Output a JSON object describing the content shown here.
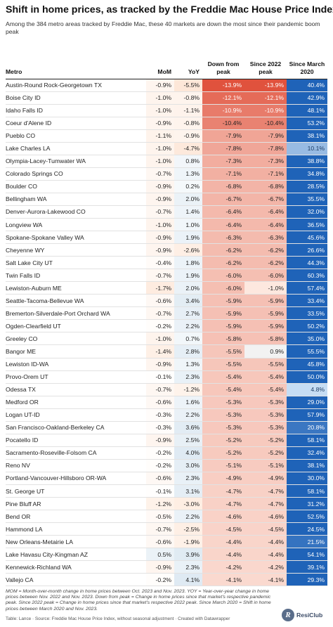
{
  "header": {
    "title": "Shift in home prices, as tracked by the Freddie Mac House Price Index",
    "subtitle": "Among the 384 metro areas tracked by Freddie Mac, these 40 markets are down the most since their pandemic boom peak"
  },
  "footer": {
    "notes": "MOM = Month-over-month change in home prices between Oct. 2023 and Nov. 2023. YOY = Year-over-year change in home prices between Nov. 2022 and Nov. 2023. Down from peak = Change in home prices since that market's respective pandemic peak. Since 2022 peak = Change in home prices since that market's respective 2022 peak. Since March 2020 = Shift in home prices between March 2020 and Nov. 2023.",
    "credit": "Table: Lance · Source: Freddie Mac House Price Index, without seasonal adjustment · Created with Datawrapper",
    "logo_mark": "R",
    "logo_text": "ResiClub"
  },
  "colors": {
    "since_2020_dark": "#1f63b8",
    "since_2020_light": "#cde2f6",
    "down_peak_dark": "#e0523d",
    "down_peak_light": "#fde8df",
    "yoy_positive_tint": "#dde9f2",
    "yoy_negative_tint": "#fde6d6"
  },
  "chart_data": {
    "type": "table",
    "columns": [
      "Metro",
      "MoM",
      "YoY",
      "Down from peak",
      "Since 2022 peak",
      "Since March 2020"
    ],
    "rows": [
      [
        "Austin-Round Rock-Georgetown TX",
        "-0.9%",
        "-5.5%",
        "-13.9%",
        "-13.9%",
        "40.4%"
      ],
      [
        "Boise City ID",
        "-1.0%",
        "-0.8%",
        "-12.1%",
        "-12.1%",
        "42.9%"
      ],
      [
        "Idaho Falls ID",
        "-1.0%",
        "-1.1%",
        "-10.9%",
        "-10.9%",
        "48.1%"
      ],
      [
        "Coeur d'Alene ID",
        "-0.9%",
        "-0.8%",
        "-10.4%",
        "-10.4%",
        "53.2%"
      ],
      [
        "Pueblo CO",
        "-1.1%",
        "-0.9%",
        "-7.9%",
        "-7.9%",
        "38.1%"
      ],
      [
        "Lake Charles LA",
        "-1.0%",
        "-4.7%",
        "-7.8%",
        "-7.8%",
        "10.1%"
      ],
      [
        "Olympia-Lacey-Tumwater WA",
        "-1.0%",
        "0.8%",
        "-7.3%",
        "-7.3%",
        "38.8%"
      ],
      [
        "Colorado Springs CO",
        "-0.7%",
        "1.3%",
        "-7.1%",
        "-7.1%",
        "34.8%"
      ],
      [
        "Boulder CO",
        "-0.9%",
        "0.2%",
        "-6.8%",
        "-6.8%",
        "28.5%"
      ],
      [
        "Bellingham WA",
        "-0.9%",
        "2.0%",
        "-6.7%",
        "-6.7%",
        "35.5%"
      ],
      [
        "Denver-Aurora-Lakewood CO",
        "-0.7%",
        "1.4%",
        "-6.4%",
        "-6.4%",
        "32.0%"
      ],
      [
        "Longview WA",
        "-1.0%",
        "1.0%",
        "-6.4%",
        "-6.4%",
        "36.5%"
      ],
      [
        "Spokane-Spokane Valley WA",
        "-0.9%",
        "1.9%",
        "-6.3%",
        "-6.3%",
        "45.6%"
      ],
      [
        "Cheyenne WY",
        "-0.9%",
        "-2.6%",
        "-6.2%",
        "-6.2%",
        "26.6%"
      ],
      [
        "Salt Lake City UT",
        "-0.4%",
        "1.8%",
        "-6.2%",
        "-6.2%",
        "44.3%"
      ],
      [
        "Twin Falls ID",
        "-0.7%",
        "1.9%",
        "-6.0%",
        "-6.0%",
        "60.3%"
      ],
      [
        "Lewiston-Auburn ME",
        "-1.7%",
        "2.0%",
        "-6.0%",
        "-1.0%",
        "57.4%"
      ],
      [
        "Seattle-Tacoma-Bellevue WA",
        "-0.6%",
        "3.4%",
        "-5.9%",
        "-5.9%",
        "33.4%"
      ],
      [
        "Bremerton-Silverdale-Port Orchard WA",
        "-0.7%",
        "2.7%",
        "-5.9%",
        "-5.9%",
        "33.5%"
      ],
      [
        "Ogden-Clearfield UT",
        "-0.2%",
        "2.2%",
        "-5.9%",
        "-5.9%",
        "50.2%"
      ],
      [
        "Greeley CO",
        "-1.0%",
        "0.7%",
        "-5.8%",
        "-5.8%",
        "35.0%"
      ],
      [
        "Bangor ME",
        "-1.4%",
        "2.8%",
        "-5.5%",
        "0.9%",
        "55.5%"
      ],
      [
        "Lewiston ID-WA",
        "-0.9%",
        "1.3%",
        "-5.5%",
        "-5.5%",
        "45.8%"
      ],
      [
        "Provo-Orem UT",
        "-0.1%",
        "2.3%",
        "-5.4%",
        "-5.4%",
        "50.0%"
      ],
      [
        "Odessa TX",
        "-0.7%",
        "-1.2%",
        "-5.4%",
        "-5.4%",
        "4.8%"
      ],
      [
        "Medford OR",
        "-0.6%",
        "1.6%",
        "-5.3%",
        "-5.3%",
        "29.0%"
      ],
      [
        "Logan UT-ID",
        "-0.3%",
        "2.2%",
        "-5.3%",
        "-5.3%",
        "57.9%"
      ],
      [
        "San Francisco-Oakland-Berkeley CA",
        "-0.3%",
        "3.6%",
        "-5.3%",
        "-5.3%",
        "20.8%"
      ],
      [
        "Pocatello ID",
        "-0.9%",
        "2.5%",
        "-5.2%",
        "-5.2%",
        "58.1%"
      ],
      [
        "Sacramento-Roseville-Folsom CA",
        "-0.2%",
        "4.0%",
        "-5.2%",
        "-5.2%",
        "32.4%"
      ],
      [
        "Reno NV",
        "-0.2%",
        "3.0%",
        "-5.1%",
        "-5.1%",
        "38.1%"
      ],
      [
        "Portland-Vancouver-Hillsboro OR-WA",
        "-0.6%",
        "2.3%",
        "-4.9%",
        "-4.9%",
        "30.0%"
      ],
      [
        "St. George UT",
        "-0.1%",
        "3.1%",
        "-4.7%",
        "-4.7%",
        "58.1%"
      ],
      [
        "Pine Bluff AR",
        "-1.2%",
        "-3.0%",
        "-4.7%",
        "-4.7%",
        "31.2%"
      ],
      [
        "Bend OR",
        "-0.5%",
        "2.2%",
        "-4.6%",
        "-4.6%",
        "52.5%"
      ],
      [
        "Hammond LA",
        "-0.7%",
        "-2.5%",
        "-4.5%",
        "-4.5%",
        "24.5%"
      ],
      [
        "New Orleans-Metairie LA",
        "-0.6%",
        "-1.9%",
        "-4.4%",
        "-4.4%",
        "21.5%"
      ],
      [
        "Lake Havasu City-Kingman AZ",
        "0.5%",
        "3.9%",
        "-4.4%",
        "-4.4%",
        "54.1%"
      ],
      [
        "Kennewick-Richland WA",
        "-0.9%",
        "2.3%",
        "-4.2%",
        "-4.2%",
        "39.1%"
      ],
      [
        "Vallejo CA",
        "-0.2%",
        "4.1%",
        "-4.1%",
        "-4.1%",
        "29.3%"
      ]
    ]
  }
}
